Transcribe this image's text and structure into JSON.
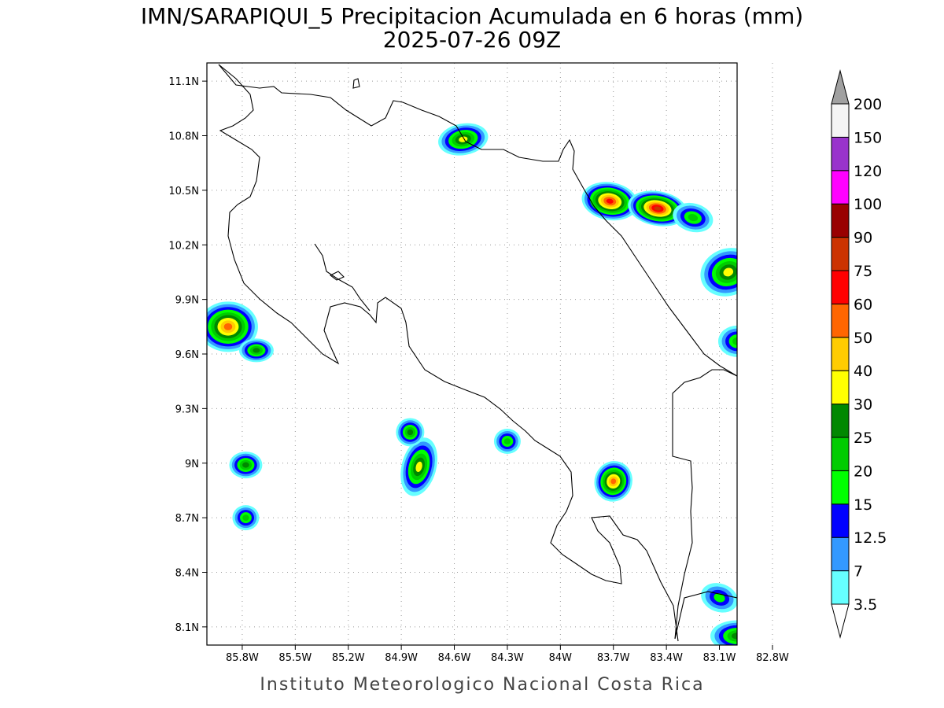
{
  "title": {
    "line1": "IMN/SARAPIQUI_5 Precipitacion Acumulada en 6 horas (mm)",
    "line2": "2025-07-26 09Z"
  },
  "footer": "Instituto Meteorologico Nacional Costa Rica",
  "map": {
    "lon_range": [
      -86.0,
      -83.0
    ],
    "lat_range": [
      8.0,
      11.2
    ],
    "lon_ticks": [
      {
        "value": -85.8,
        "label": "85.8W"
      },
      {
        "value": -85.5,
        "label": "85.5W"
      },
      {
        "value": -85.2,
        "label": "85.2W"
      },
      {
        "value": -84.9,
        "label": "84.9W"
      },
      {
        "value": -84.6,
        "label": "84.6W"
      },
      {
        "value": -84.3,
        "label": "84.3W"
      },
      {
        "value": -84.0,
        "label": "84W"
      },
      {
        "value": -83.7,
        "label": "83.7W"
      },
      {
        "value": -83.4,
        "label": "83.4W"
      },
      {
        "value": -83.1,
        "label": "83.1W"
      },
      {
        "value": -82.8,
        "label": "82.8W"
      }
    ],
    "lat_ticks": [
      {
        "value": 11.1,
        "label": "11.1N"
      },
      {
        "value": 10.8,
        "label": "10.8N"
      },
      {
        "value": 10.5,
        "label": "10.5N"
      },
      {
        "value": 10.2,
        "label": "10.2N"
      },
      {
        "value": 9.9,
        "label": "9.9N"
      },
      {
        "value": 9.6,
        "label": "9.6N"
      },
      {
        "value": 9.3,
        "label": "9.3N"
      },
      {
        "value": 9.0,
        "label": "9N"
      },
      {
        "value": 8.7,
        "label": "8.7N"
      },
      {
        "value": 8.4,
        "label": "8.4N"
      },
      {
        "value": 8.1,
        "label": "8.1N"
      }
    ]
  },
  "colorbar": {
    "top_color": "#a0a0a0",
    "levels": [
      {
        "label": "3.5",
        "color": "#66ffff"
      },
      {
        "label": "7",
        "color": "#3399ff"
      },
      {
        "label": "12.5",
        "color": "#0000ff"
      },
      {
        "label": "15",
        "color": "#00ff00"
      },
      {
        "label": "20",
        "color": "#00cc00"
      },
      {
        "label": "25",
        "color": "#008800"
      },
      {
        "label": "30",
        "color": "#ffff00"
      },
      {
        "label": "40",
        "color": "#ffcc00"
      },
      {
        "label": "50",
        "color": "#ff6600"
      },
      {
        "label": "60",
        "color": "#ff0000"
      },
      {
        "label": "75",
        "color": "#cc3300"
      },
      {
        "label": "90",
        "color": "#990000"
      },
      {
        "label": "100",
        "color": "#ff00ff"
      },
      {
        "label": "120",
        "color": "#9933cc"
      },
      {
        "label": "150",
        "color": "#f4f4f4"
      },
      {
        "label": "200",
        "color": "#a0a0a0"
      }
    ]
  },
  "cells": [
    {
      "lon": -84.55,
      "lat": 10.78,
      "rx": 22,
      "ry": 12,
      "level": 6,
      "rot": -10
    },
    {
      "lon": -83.72,
      "lat": 10.44,
      "rx": 26,
      "ry": 16,
      "level": 9,
      "rot": 10
    },
    {
      "lon": -83.45,
      "lat": 10.4,
      "rx": 28,
      "ry": 14,
      "level": 10,
      "rot": 10
    },
    {
      "lon": -83.25,
      "lat": 10.35,
      "rx": 16,
      "ry": 10,
      "level": 4,
      "rot": 15
    },
    {
      "lon": -85.88,
      "lat": 9.75,
      "rx": 28,
      "ry": 24,
      "level": 8,
      "rot": 0
    },
    {
      "lon": -85.72,
      "lat": 9.62,
      "rx": 12,
      "ry": 7,
      "level": 5,
      "rot": 0
    },
    {
      "lon": -84.8,
      "lat": 8.98,
      "rx": 12,
      "ry": 30,
      "level": 6,
      "rot": 15
    },
    {
      "lon": -84.85,
      "lat": 9.17,
      "rx": 8,
      "ry": 10,
      "level": 5,
      "rot": 0
    },
    {
      "lon": -84.3,
      "lat": 9.12,
      "rx": 7,
      "ry": 8,
      "level": 4,
      "rot": 0
    },
    {
      "lon": -83.7,
      "lat": 8.9,
      "rx": 14,
      "ry": 18,
      "level": 8,
      "rot": 20
    },
    {
      "lon": -85.78,
      "lat": 8.99,
      "rx": 11,
      "ry": 9,
      "level": 5,
      "rot": 0
    },
    {
      "lon": -85.78,
      "lat": 8.7,
      "rx": 7,
      "ry": 8,
      "level": 4,
      "rot": 0
    },
    {
      "lon": -83.05,
      "lat": 10.05,
      "rx": 26,
      "ry": 22,
      "level": 6,
      "rot": -20
    },
    {
      "lon": -83.0,
      "lat": 9.67,
      "rx": 14,
      "ry": 12,
      "level": 4,
      "rot": 0
    },
    {
      "lon": -83.1,
      "lat": 8.26,
      "rx": 14,
      "ry": 10,
      "level": 3,
      "rot": 20
    },
    {
      "lon": -83.0,
      "lat": 8.05,
      "rx": 24,
      "ry": 12,
      "level": 5,
      "rot": 0
    }
  ]
}
